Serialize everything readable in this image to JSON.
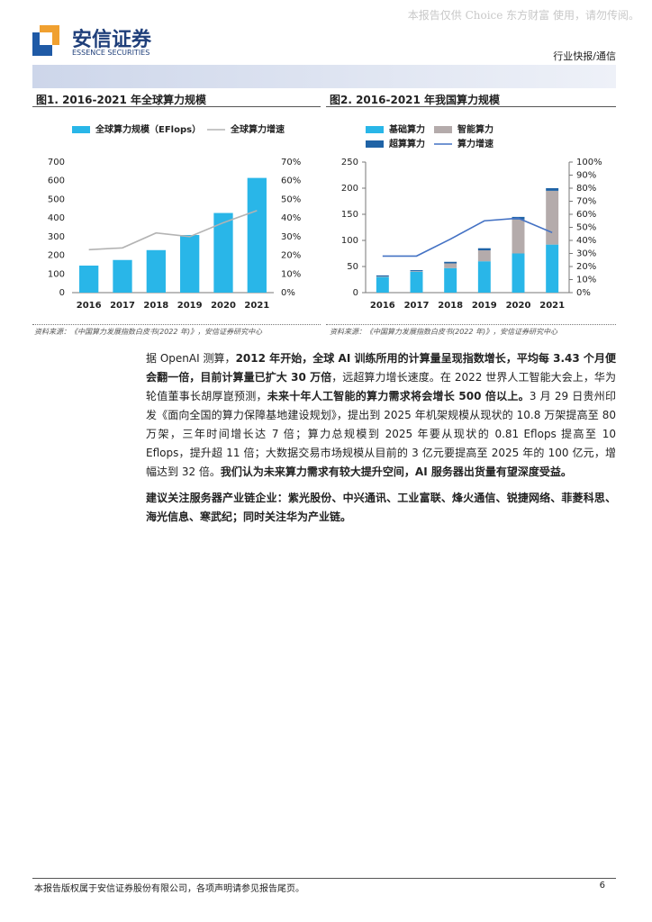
{
  "header": {
    "brand": "安信证券",
    "brand_en": "ESSENCE SECURITIES",
    "watermark": "本报告仅供 Choice 东方财富 使用，请勿传阅。",
    "section": "行业快报/通信"
  },
  "figures": [
    {
      "title": "图1. 2016-2021 年全球算力规模",
      "source": "资料来源：《中国算力发展指数白皮书(2022 年)》，安信证券研究中心"
    },
    {
      "title": "图2. 2016-2021 年我国算力规模",
      "source": "资料来源：《中国算力发展指数白皮书(2022 年)》，安信证券研究中心"
    }
  ],
  "chart_data": [
    {
      "type": "bar",
      "categories": [
        "2016",
        "2017",
        "2018",
        "2019",
        "2020",
        "2021"
      ],
      "series": [
        {
          "name": "全球算力规模（EFlops）",
          "color": "#29b6e8",
          "values": [
            145,
            175,
            228,
            309,
            427,
            615
          ]
        },
        {
          "name": "全球算力增速",
          "color": "#b3b3b3",
          "type": "line",
          "axis": "y2",
          "values": [
            23,
            24,
            32,
            30,
            37.5,
            44
          ]
        }
      ],
      "ylim": [
        0,
        700
      ],
      "yticks": [
        0,
        100,
        200,
        300,
        400,
        500,
        600,
        700
      ],
      "y2lim": [
        0,
        70
      ],
      "y2ticks": [
        {
          "value": 0,
          "label": "0%"
        },
        {
          "value": 10,
          "label": "10%"
        },
        {
          "value": 20,
          "label": "20%"
        },
        {
          "value": 30,
          "label": "30%"
        },
        {
          "value": 40,
          "label": "40%"
        },
        {
          "value": 50,
          "label": "50%"
        },
        {
          "value": 60,
          "label": "60%"
        },
        {
          "value": 70,
          "label": "70%"
        }
      ],
      "stacked": false,
      "axis_lines": false
    },
    {
      "type": "bar",
      "categories": [
        "2016",
        "2017",
        "2018",
        "2019",
        "2020",
        "2021"
      ],
      "series": [
        {
          "name": "基础算力",
          "color": "#29b6e8",
          "values": [
            30,
            40,
            47,
            60,
            75,
            92
          ]
        },
        {
          "name": "智能算力",
          "color": "#b4abab",
          "values": [
            1,
            1,
            9,
            21,
            65,
            103
          ]
        },
        {
          "name": "超算算力",
          "color": "#1f63a6",
          "values": [
            2,
            2,
            3,
            4,
            5,
            5
          ]
        },
        {
          "name": "算力增速",
          "color": "#4472c4",
          "type": "line",
          "axis": "y2",
          "values": [
            28,
            28,
            41,
            55,
            57,
            46
          ]
        }
      ],
      "ylim": [
        0,
        250
      ],
      "yticks": [
        0,
        50,
        100,
        150,
        200,
        250
      ],
      "y2lim": [
        0,
        100
      ],
      "y2ticks": [
        {
          "value": 0,
          "label": "0%"
        },
        {
          "value": 10,
          "label": "10%"
        },
        {
          "value": 20,
          "label": "20%"
        },
        {
          "value": 30,
          "label": "30%"
        },
        {
          "value": 40,
          "label": "40%"
        },
        {
          "value": 50,
          "label": "50%"
        },
        {
          "value": 60,
          "label": "60%"
        },
        {
          "value": 70,
          "label": "70%"
        },
        {
          "value": 80,
          "label": "80%"
        },
        {
          "value": 90,
          "label": "90%"
        },
        {
          "value": 100,
          "label": "100%"
        }
      ],
      "stacked": true,
      "axis_lines": true
    }
  ],
  "body": {
    "p1": [
      "据 OpenAI 测算，",
      "2012 年开始，全球 AI 训练所用的计算量呈现指数增长，平均每 3.43 个月便会翻一倍，目前计算量已扩大 30 万倍",
      "，远超算力增长速度。在 2022 世界人工智能大会上，华为轮值董事长胡厚崑预测，",
      "未来十年人工智能的算力需求将会增长 500 倍以上。",
      "3 月 29 日贵州印发《面向全国的算力保障基地建设规划》，提出到 2025 年机架规模从现状的 10.8 万架提高至 80 万架，三年时间增长达 7 倍；算力总规模到 2025 年要从现状的 0.81 Eflops 提高至 10 Eflops，提升超 11 倍；大数据交易市场规模从目前的 3 亿元要提高至 2025 年的 100 亿元，增幅达到 32 倍。",
      "我们认为未来算力需求有较大提升空间，AI 服务器出货量有望深度受益。"
    ],
    "p2": "建议关注服务器产业链企业：紫光股份、中兴通讯、工业富联、烽火通信、锐捷网络、菲菱科思、海光信息、寒武纪；同时关注华为产业链。"
  },
  "footer": {
    "notice": "本报告版权属于安信证券股份有限公司，各项声明请参见报告尾页。",
    "page": "6"
  }
}
